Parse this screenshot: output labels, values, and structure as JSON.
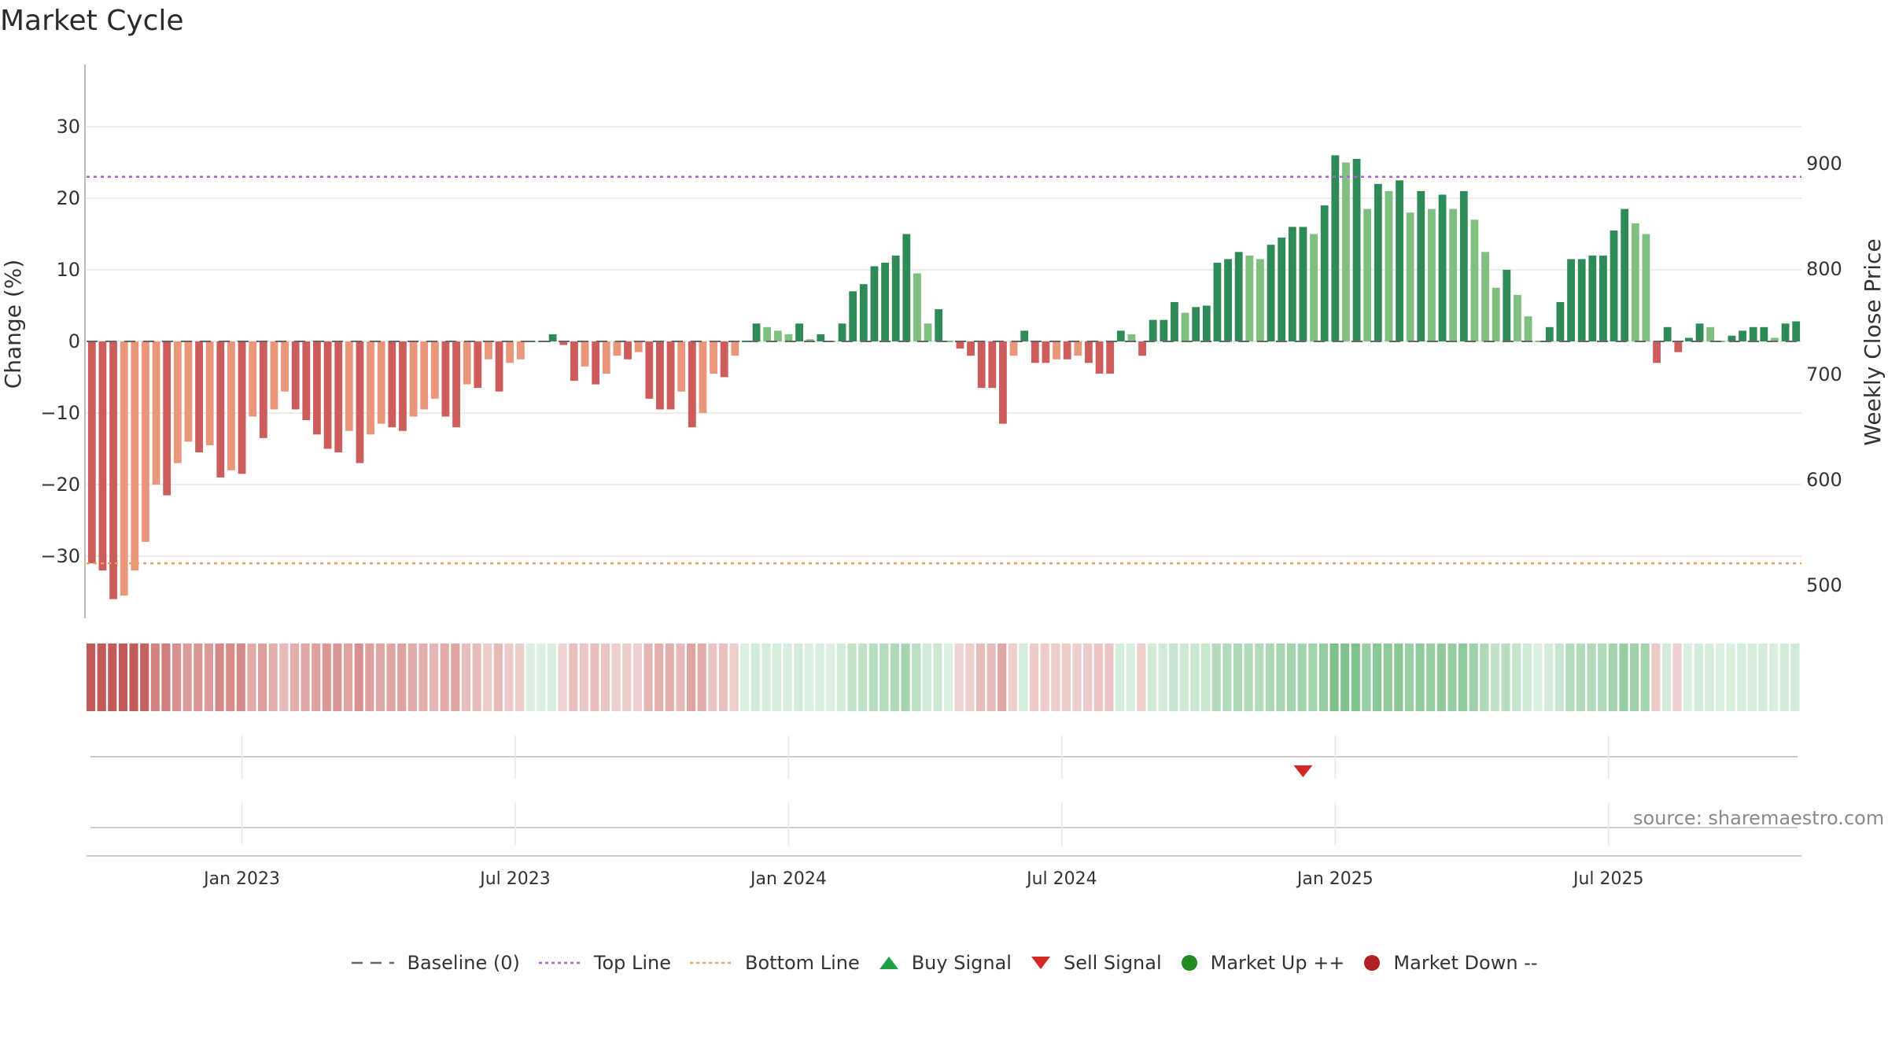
{
  "title": "Market Cycle",
  "source": "source: sharemaestro.com",
  "colors": {
    "up_strong": "#2e8b57",
    "up_light": "#7fbf7f",
    "down_strong": "#cd5c5c",
    "down_light": "#e9967a",
    "top_line": "#b05cd6",
    "bottom_line": "#f0a05a",
    "baseline": "#666666",
    "buy": "#22a046",
    "sell": "#d62728",
    "market_up": "#228b22",
    "market_down": "#b22222"
  },
  "legend": [
    {
      "label": "Baseline (0)",
      "icon": "dash-line-icon"
    },
    {
      "label": "Top Line",
      "icon": "dotted-purple-line-icon"
    },
    {
      "label": "Bottom Line",
      "icon": "dotted-orange-line-icon"
    },
    {
      "label": "Buy Signal",
      "icon": "triangle-up-icon"
    },
    {
      "label": "Sell Signal",
      "icon": "triangle-down-icon"
    },
    {
      "label": "Market Up ++",
      "icon": "green-dot-icon"
    },
    {
      "label": "Market Down --",
      "icon": "red-dot-icon"
    }
  ],
  "chart_data": {
    "type": "bar",
    "x_axis": {
      "ticks": [
        "Jan 2023",
        "Jul 2023",
        "Jan 2024",
        "Jul 2024",
        "Jan 2025",
        "Jul 2025"
      ],
      "tick_weeks": [
        14,
        39.5,
        65,
        90.5,
        116,
        141.5
      ]
    },
    "y_left": {
      "label": "Change (%)",
      "ticks": [
        30,
        20,
        10,
        0,
        -10,
        -20,
        -30
      ],
      "tick_labels": [
        "30",
        "20",
        "10",
        "0",
        "−10",
        "−20",
        "−30"
      ],
      "range": [
        -39,
        38
      ]
    },
    "y_right": {
      "label": "Weekly Close Price",
      "ticks": [
        900,
        800,
        700,
        600,
        500
      ]
    },
    "top_line": 23,
    "bottom_line": -31,
    "grid": "on",
    "legend_position": "bottom",
    "values": [
      -31,
      -32,
      -36,
      -35.5,
      -32,
      -28,
      -20,
      -21.5,
      -17,
      -14,
      -15.5,
      -14.5,
      -19,
      -18,
      -18.5,
      -10.5,
      -13.5,
      -9.5,
      -7,
      -9.5,
      -11,
      -13,
      -15,
      -15.5,
      -12.5,
      -17,
      -13,
      -11.5,
      -12,
      -12.5,
      -10.5,
      -9.5,
      -8,
      -10.5,
      -12,
      -6,
      -6.5,
      -2.5,
      -7,
      -3,
      -2.5,
      0,
      0,
      1,
      -0.5,
      -5.5,
      -3.5,
      -6,
      -4.5,
      -2,
      -2.5,
      -1.5,
      -8,
      -9.5,
      -9.5,
      -7,
      -12,
      -10,
      -4.5,
      -5,
      -2,
      0,
      2.5,
      2,
      1.5,
      1,
      2.5,
      0.3,
      1,
      0,
      2.5,
      7,
      8,
      10.5,
      11,
      12,
      15,
      9.5,
      2.5,
      4.5,
      0,
      -1,
      -2,
      -6.5,
      -6.5,
      -11.5,
      -2,
      1.5,
      -3,
      -3,
      -2.5,
      -2.5,
      -2,
      -3,
      -4.5,
      -4.5,
      1.5,
      1,
      -2,
      3,
      3,
      5.5,
      4,
      4.8,
      5,
      11,
      11.5,
      12.5,
      12,
      11.5,
      13.5,
      14.5,
      16,
      16,
      15,
      19,
      26,
      25,
      25.5,
      18.5,
      22,
      21,
      22.5,
      18,
      21,
      18.5,
      20.5,
      18.5,
      21,
      17,
      12.5,
      7.5,
      10,
      6.5,
      3.5,
      0,
      2,
      5.5,
      11.5,
      11.5,
      12,
      12,
      15.5,
      18.5,
      16.5,
      15,
      -3,
      2,
      -1.5,
      0.5,
      2.5,
      2,
      0,
      0.8,
      1.5,
      2,
      2,
      0.5,
      2.5,
      2.8
    ],
    "signals": [
      {
        "type": "sell",
        "week": 113
      }
    ]
  }
}
